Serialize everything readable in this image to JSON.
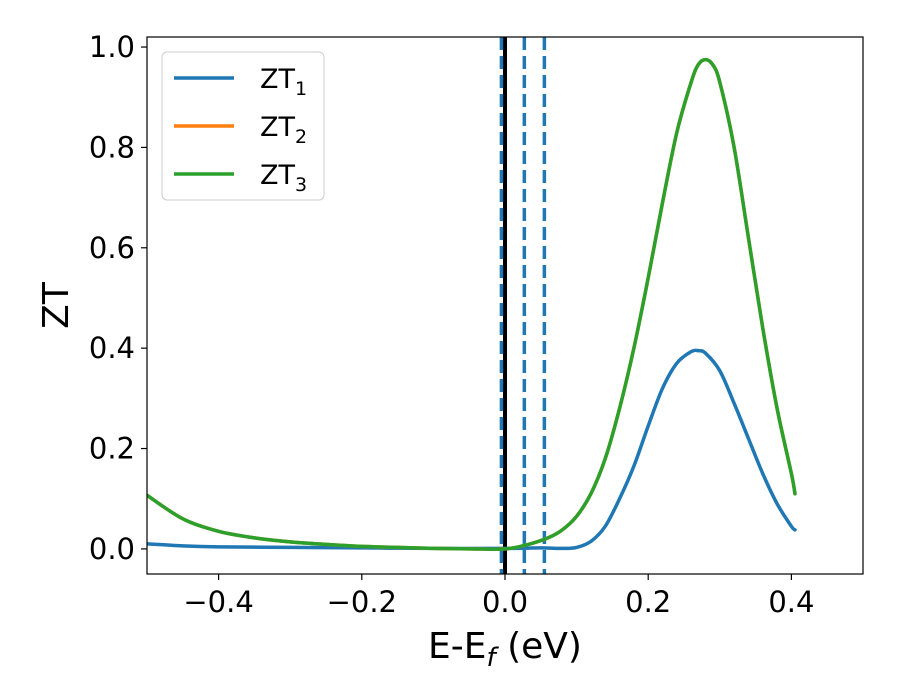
{
  "chart_data": {
    "type": "line",
    "xlabel": {
      "main": "E-E",
      "sub": "f",
      "unit": " (eV)"
    },
    "ylabel": "ZT",
    "xlim": [
      -0.5,
      0.5
    ],
    "ylim": [
      -0.05,
      1.02
    ],
    "xticks": [
      -0.4,
      -0.2,
      0.0,
      0.2,
      0.4
    ],
    "xtick_labels": [
      "−0.4",
      "−0.2",
      "0.0",
      "0.2",
      "0.4"
    ],
    "yticks": [
      0.0,
      0.2,
      0.4,
      0.6,
      0.8,
      1.0
    ],
    "ytick_labels": [
      "0.0",
      "0.2",
      "0.4",
      "0.6",
      "0.8",
      "1.0"
    ],
    "grid": false,
    "legend_position": "top-left",
    "series": [
      {
        "name": "ZT",
        "subscript": "1",
        "color": "#1f77b4",
        "x": [
          -0.5,
          -0.45,
          -0.4,
          -0.3,
          -0.2,
          -0.1,
          0.0,
          0.05,
          0.08,
          0.1,
          0.12,
          0.14,
          0.16,
          0.18,
          0.2,
          0.22,
          0.24,
          0.26,
          0.27,
          0.28,
          0.3,
          0.32,
          0.34,
          0.36,
          0.38,
          0.4,
          0.405
        ],
        "y": [
          0.01,
          0.006,
          0.004,
          0.003,
          0.002,
          0.001,
          0.001,
          0.002,
          0.001,
          0.003,
          0.015,
          0.045,
          0.1,
          0.165,
          0.245,
          0.32,
          0.37,
          0.393,
          0.395,
          0.39,
          0.355,
          0.29,
          0.22,
          0.15,
          0.09,
          0.045,
          0.038
        ]
      },
      {
        "name": "ZT",
        "subscript": "2",
        "color": "#ff7f0e",
        "x": [
          -0.5,
          -0.45,
          -0.4,
          -0.35,
          -0.3,
          -0.25,
          -0.2,
          -0.15,
          -0.1,
          -0.05,
          0.0,
          0.03,
          0.06,
          0.08,
          0.1,
          0.12,
          0.14,
          0.16,
          0.18,
          0.2,
          0.22,
          0.24,
          0.26,
          0.27,
          0.28,
          0.29,
          0.3,
          0.32,
          0.34,
          0.36,
          0.38,
          0.4,
          0.405
        ],
        "y": [
          0.107,
          0.06,
          0.035,
          0.022,
          0.014,
          0.009,
          0.005,
          0.003,
          0.001,
          0.0,
          0.0,
          0.008,
          0.022,
          0.038,
          0.065,
          0.11,
          0.18,
          0.28,
          0.4,
          0.54,
          0.69,
          0.83,
          0.93,
          0.965,
          0.975,
          0.965,
          0.93,
          0.8,
          0.62,
          0.44,
          0.28,
          0.15,
          0.11
        ]
      },
      {
        "name": "ZT",
        "subscript": "3",
        "color": "#2ca02c",
        "x": [
          -0.5,
          -0.45,
          -0.4,
          -0.35,
          -0.3,
          -0.25,
          -0.2,
          -0.15,
          -0.1,
          -0.05,
          0.0,
          0.03,
          0.06,
          0.08,
          0.1,
          0.12,
          0.14,
          0.16,
          0.18,
          0.2,
          0.22,
          0.24,
          0.26,
          0.27,
          0.28,
          0.29,
          0.3,
          0.32,
          0.34,
          0.36,
          0.38,
          0.4,
          0.405
        ],
        "y": [
          0.107,
          0.06,
          0.035,
          0.022,
          0.014,
          0.009,
          0.005,
          0.003,
          0.001,
          0.0,
          0.0,
          0.008,
          0.022,
          0.038,
          0.065,
          0.11,
          0.18,
          0.28,
          0.4,
          0.54,
          0.69,
          0.83,
          0.93,
          0.965,
          0.975,
          0.965,
          0.93,
          0.8,
          0.62,
          0.44,
          0.28,
          0.15,
          0.11
        ]
      }
    ],
    "vertical_lines": [
      {
        "x": 0.0,
        "style": "solid",
        "color": "#000000"
      },
      {
        "x": -0.005,
        "style": "dashed",
        "color": "#1f77b4"
      },
      {
        "x": 0.027,
        "style": "dashed",
        "color": "#1f77b4"
      },
      {
        "x": 0.055,
        "style": "dashed",
        "color": "#1f77b4"
      }
    ]
  }
}
